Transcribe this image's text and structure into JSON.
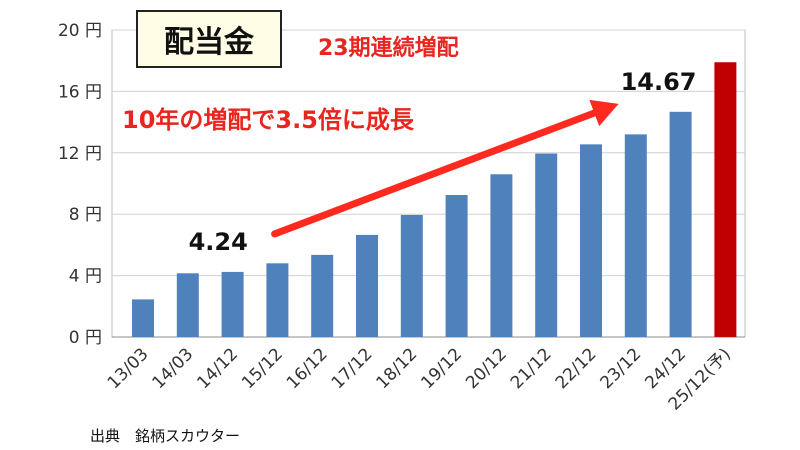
{
  "title": "配当金",
  "subtitle": "23期連続増配",
  "annotation": "10年の増配で3.5倍に成長",
  "source": "出典　銘柄スカウター",
  "colors": {
    "actual": "#4f81bd",
    "forecast": "#c00000",
    "arrow": "#ff2a1f",
    "accent_text": "#e8261f"
  },
  "chart_data": {
    "type": "bar",
    "categories": [
      "13/03",
      "14/03",
      "14/12",
      "15/12",
      "16/12",
      "17/12",
      "18/12",
      "19/12",
      "20/12",
      "21/12",
      "22/12",
      "23/12",
      "24/12",
      "25/12(予)"
    ],
    "values": [
      2.45,
      4.15,
      4.24,
      4.8,
      5.35,
      6.65,
      7.95,
      9.25,
      10.6,
      11.95,
      12.55,
      13.2,
      14.67,
      17.9
    ],
    "forecast_index": 13,
    "ylim": [
      0,
      20
    ],
    "yticks": [
      0,
      4,
      8,
      12,
      16,
      20
    ],
    "ytick_labels": [
      "0 円",
      "4 円",
      "8 円",
      "12 円",
      "16 円",
      "20 円"
    ],
    "grid": true,
    "data_labels": [
      {
        "category": "14/12",
        "text": "4.24"
      },
      {
        "category": "24/12",
        "text": "14.67"
      }
    ],
    "arrow": {
      "from_category": "14/12",
      "to_category": "24/12"
    }
  }
}
